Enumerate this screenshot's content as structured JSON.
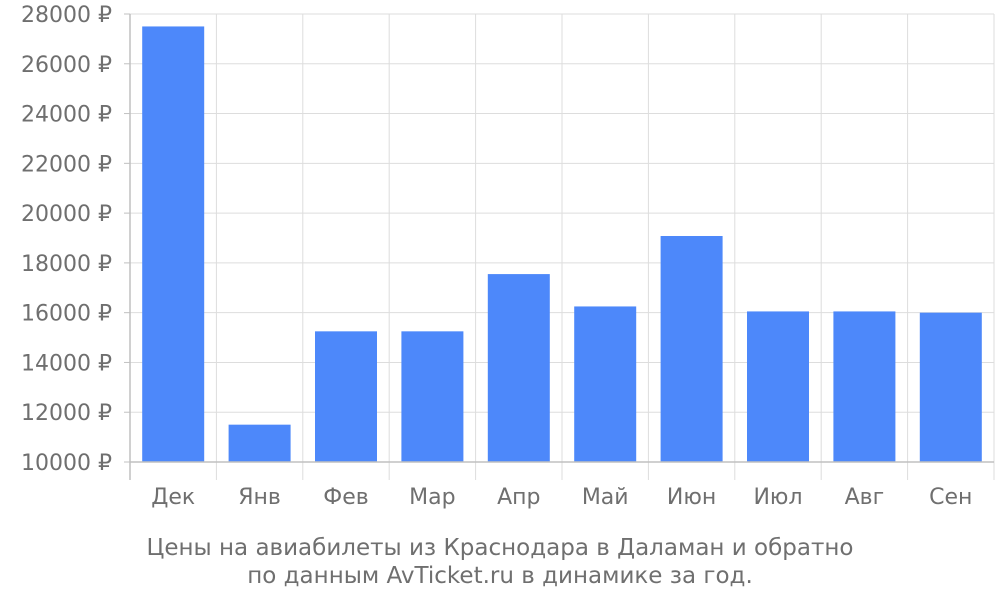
{
  "chart_data": {
    "type": "bar",
    "title": "",
    "xlabel": "",
    "ylabel": "",
    "currency_symbol": "₽",
    "categories": [
      "Дек",
      "Янв",
      "Фев",
      "Мар",
      "Апр",
      "Май",
      "Июн",
      "Июл",
      "Авг",
      "Сен"
    ],
    "values": [
      27500,
      11500,
      15250,
      15250,
      17550,
      16250,
      19080,
      16050,
      16050,
      16000
    ],
    "ylim": [
      10000,
      28000
    ],
    "yticks": [
      10000,
      12000,
      14000,
      16000,
      18000,
      20000,
      22000,
      24000,
      26000,
      28000
    ],
    "ytick_labels": [
      "10000 ₽",
      "12000 ₽",
      "14000 ₽",
      "16000 ₽",
      "18000 ₽",
      "20000 ₽",
      "22000 ₽",
      "24000 ₽",
      "26000 ₽",
      "28000 ₽"
    ],
    "grid": true,
    "legend": "none",
    "bar_color": "#4d88fa",
    "grid_color": "#dddddd",
    "axis_color": "#c0c0c0",
    "text_color": "#6f6f6f"
  },
  "caption": {
    "line1": "Цены на авиабилеты из Краснодара в Даламан и обратно",
    "line2": "по данным AvTicket.ru в динамике за год."
  }
}
